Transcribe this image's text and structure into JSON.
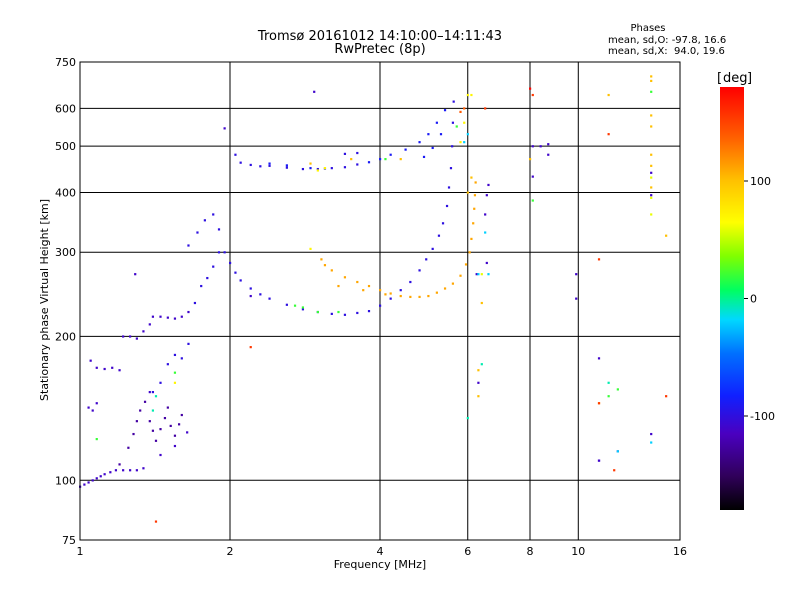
{
  "chart_data": {
    "type": "scatter",
    "title": "Tromsø 20161012 14:10:00–14:11:43",
    "subtitle": "RwPretec (8p)",
    "xlabel": "Frequency [MHz]",
    "ylabel": "Stationary phase Virtual Height [km]",
    "x_scale": "log",
    "y_scale": "log",
    "xlim": [
      1,
      16
    ],
    "ylim": [
      75,
      750
    ],
    "x_ticks": [
      1,
      2,
      4,
      6,
      8,
      10,
      16
    ],
    "x_tick_labels": [
      "1",
      "2",
      "4",
      "6",
      "8",
      "10",
      "16"
    ],
    "y_ticks": [
      75,
      100,
      200,
      300,
      400,
      500,
      600,
      750
    ],
    "y_tick_labels": [
      "75",
      "100",
      "200",
      "300",
      "400",
      "500",
      "600",
      "750"
    ],
    "grid": true,
    "stats": {
      "heading": "Phases",
      "line_o": "mean, sd,O: -97.8, 16.6",
      "line_x": "mean, sd,X:  94.0, 19.6"
    },
    "colorbar": {
      "label": "deg",
      "range": [
        -180,
        180
      ],
      "ticks": [
        100,
        0,
        -100
      ],
      "tick_labels": [
        "100",
        "0",
        "-100"
      ]
    },
    "series": [
      {
        "name": "",
        "phase": -110,
        "points": [
          [
            1.0,
            97
          ],
          [
            1.02,
            98
          ],
          [
            1.04,
            99
          ],
          [
            1.06,
            100
          ],
          [
            1.08,
            101
          ],
          [
            1.1,
            102
          ],
          [
            1.12,
            103
          ],
          [
            1.15,
            104
          ],
          [
            1.18,
            105
          ],
          [
            1.22,
            105
          ],
          [
            1.26,
            105
          ],
          [
            1.3,
            105
          ],
          [
            1.34,
            106
          ],
          [
            1.04,
            142
          ],
          [
            1.06,
            140
          ],
          [
            1.08,
            145
          ],
          [
            1.05,
            178
          ],
          [
            1.08,
            172
          ],
          [
            1.12,
            171
          ],
          [
            1.16,
            172
          ],
          [
            1.2,
            170
          ],
          [
            1.22,
            200
          ],
          [
            1.26,
            200
          ],
          [
            1.3,
            198
          ],
          [
            1.34,
            205
          ],
          [
            1.38,
            212
          ],
          [
            1.4,
            220
          ],
          [
            1.45,
            220
          ],
          [
            1.5,
            219
          ],
          [
            1.55,
            218
          ],
          [
            1.6,
            220
          ],
          [
            1.65,
            225
          ],
          [
            1.29,
            270
          ],
          [
            1.38,
            153
          ],
          [
            1.45,
            113
          ],
          [
            1.55,
            118
          ],
          [
            1.64,
            126
          ],
          [
            2.2,
            243
          ],
          [
            2.95,
            650
          ],
          [
            1.95,
            545
          ],
          [
            8.1,
            500
          ],
          [
            8.1,
            432
          ],
          [
            8.4,
            500
          ],
          [
            8.7,
            505
          ],
          [
            8.7,
            480
          ],
          [
            9.9,
            270
          ],
          [
            9.9,
            240
          ],
          [
            11.0,
            180
          ],
          [
            11.0,
            110
          ],
          [
            11.0,
            110
          ],
          [
            12.0,
            115
          ],
          [
            14.0,
            440
          ],
          [
            14.0,
            395
          ],
          [
            14.0,
            125
          ],
          [
            6.25,
            270
          ],
          [
            6.3,
            160
          ],
          [
            6.5,
            360
          ],
          [
            6.6,
            415
          ],
          [
            6.55,
            395
          ],
          [
            6.55,
            285
          ]
        ]
      },
      {
        "name": "",
        "phase": -125,
        "points": [
          [
            1.2,
            108
          ],
          [
            1.25,
            117
          ],
          [
            1.28,
            125
          ],
          [
            1.3,
            133
          ],
          [
            1.32,
            140
          ],
          [
            1.35,
            146
          ],
          [
            1.38,
            133
          ],
          [
            1.4,
            127
          ],
          [
            1.42,
            121
          ],
          [
            1.45,
            128
          ],
          [
            1.48,
            135
          ],
          [
            1.5,
            142
          ],
          [
            1.52,
            130
          ],
          [
            1.55,
            124
          ],
          [
            1.58,
            131
          ],
          [
            1.6,
            137
          ]
        ]
      },
      {
        "name": "",
        "phase": -100,
        "points": [
          [
            1.4,
            153
          ],
          [
            1.45,
            160
          ],
          [
            1.5,
            175
          ],
          [
            1.55,
            183
          ],
          [
            1.6,
            180
          ],
          [
            1.65,
            193
          ],
          [
            1.7,
            235
          ],
          [
            1.75,
            255
          ],
          [
            1.8,
            265
          ],
          [
            1.85,
            280
          ],
          [
            1.9,
            300
          ],
          [
            1.65,
            310
          ],
          [
            1.72,
            330
          ],
          [
            1.78,
            350
          ],
          [
            1.85,
            360
          ],
          [
            1.9,
            335
          ],
          [
            1.95,
            300
          ],
          [
            2.0,
            285
          ],
          [
            2.05,
            272
          ],
          [
            2.1,
            262
          ],
          [
            2.2,
            252
          ],
          [
            2.3,
            245
          ],
          [
            2.4,
            240
          ],
          [
            2.6,
            233
          ],
          [
            2.8,
            228
          ],
          [
            3.0,
            225
          ],
          [
            3.2,
            223
          ],
          [
            3.4,
            222
          ],
          [
            3.6,
            224
          ],
          [
            3.8,
            226
          ],
          [
            4.0,
            232
          ],
          [
            4.2,
            240
          ],
          [
            4.4,
            250
          ],
          [
            4.6,
            260
          ],
          [
            4.8,
            275
          ],
          [
            4.95,
            290
          ],
          [
            5.1,
            305
          ],
          [
            5.25,
            325
          ],
          [
            5.35,
            345
          ],
          [
            5.45,
            375
          ],
          [
            5.5,
            410
          ],
          [
            5.55,
            450
          ],
          [
            5.58,
            500
          ],
          [
            5.6,
            560
          ],
          [
            5.62,
            620
          ],
          [
            2.05,
            480
          ],
          [
            2.1,
            462
          ],
          [
            2.2,
            457
          ],
          [
            2.3,
            454
          ],
          [
            2.4,
            455
          ],
          [
            2.6,
            451
          ],
          [
            2.8,
            448
          ],
          [
            3.0,
            448
          ],
          [
            3.2,
            450
          ],
          [
            3.4,
            452
          ],
          [
            3.6,
            458
          ],
          [
            3.4,
            482
          ],
          [
            3.6,
            484
          ]
        ]
      },
      {
        "name": "",
        "phase": -90,
        "points": [
          [
            2.4,
            460
          ],
          [
            2.6,
            456
          ],
          [
            2.9,
            450
          ],
          [
            3.1,
            449
          ],
          [
            3.8,
            463
          ],
          [
            4.0,
            470
          ],
          [
            4.2,
            480
          ],
          [
            4.5,
            492
          ],
          [
            4.8,
            510
          ],
          [
            5.0,
            530
          ],
          [
            5.2,
            560
          ],
          [
            5.4,
            595
          ],
          [
            4.9,
            475
          ],
          [
            5.1,
            496
          ],
          [
            5.3,
            530
          ]
        ]
      },
      {
        "name": "",
        "phase": 110,
        "points": [
          [
            3.05,
            290
          ],
          [
            3.1,
            282
          ],
          [
            3.2,
            275
          ],
          [
            3.4,
            266
          ],
          [
            3.6,
            260
          ],
          [
            3.8,
            255
          ],
          [
            4.0,
            250
          ],
          [
            4.2,
            246
          ],
          [
            4.4,
            243
          ],
          [
            4.6,
            242
          ],
          [
            4.8,
            242
          ],
          [
            5.0,
            243
          ],
          [
            5.2,
            247
          ],
          [
            5.4,
            252
          ],
          [
            5.6,
            258
          ],
          [
            5.8,
            268
          ],
          [
            5.95,
            283
          ],
          [
            6.05,
            300
          ],
          [
            6.1,
            320
          ],
          [
            6.15,
            345
          ],
          [
            6.18,
            370
          ],
          [
            6.2,
            395
          ],
          [
            6.22,
            420
          ],
          [
            3.3,
            255
          ],
          [
            3.7,
            250
          ],
          [
            4.1,
            245
          ]
        ]
      },
      {
        "name": "",
        "phase": 100,
        "points": [
          [
            2.9,
            460
          ],
          [
            3.5,
            470
          ],
          [
            4.4,
            470
          ],
          [
            6.0,
            400
          ],
          [
            6.1,
            430
          ],
          [
            6.4,
            235
          ],
          [
            6.3,
            170
          ],
          [
            6.3,
            150
          ],
          [
            8.0,
            470
          ],
          [
            11.5,
            640
          ],
          [
            14.0,
            550
          ],
          [
            14.0,
            480
          ],
          [
            14.0,
            455
          ],
          [
            14.0,
            410
          ],
          [
            15.0,
            325
          ],
          [
            11.0,
            145
          ],
          [
            14.0,
            580
          ],
          [
            14.0,
            685
          ],
          [
            14.0,
            700
          ]
        ]
      },
      {
        "name": "",
        "phase": 70,
        "points": [
          [
            2.9,
            305
          ],
          [
            3.0,
            445
          ],
          [
            3.1,
            450
          ],
          [
            5.8,
            510
          ],
          [
            5.9,
            560
          ],
          [
            6.1,
            640
          ],
          [
            6.0,
            640
          ],
          [
            1.55,
            160
          ]
        ]
      },
      {
        "name": "",
        "phase": 20,
        "points": [
          [
            2.7,
            232
          ],
          [
            2.8,
            230
          ],
          [
            3.0,
            225
          ],
          [
            3.3,
            225
          ],
          [
            4.1,
            470
          ],
          [
            5.7,
            550
          ],
          [
            1.08,
            122
          ],
          [
            1.55,
            168
          ],
          [
            14.0,
            650
          ],
          [
            8.1,
            385
          ],
          [
            12.0,
            155
          ],
          [
            11.5,
            150
          ]
        ]
      },
      {
        "name": "",
        "phase": -20,
        "points": [
          [
            5.9,
            510
          ],
          [
            6.0,
            530
          ],
          [
            6.6,
            270
          ],
          [
            6.3,
            270
          ],
          [
            6.5,
            330
          ],
          [
            12.0,
            115
          ],
          [
            14.0,
            120
          ]
        ]
      },
      {
        "name": "",
        "phase": -5,
        "points": [
          [
            11.5,
            160
          ],
          [
            6.0,
            135
          ],
          [
            6.4,
            175
          ],
          [
            1.4,
            140
          ],
          [
            1.42,
            150
          ]
        ]
      },
      {
        "name": "",
        "phase": 155,
        "points": [
          [
            2.2,
            190
          ],
          [
            1.42,
            82
          ],
          [
            11.0,
            290
          ],
          [
            15.0,
            150
          ],
          [
            6.5,
            600
          ],
          [
            8.1,
            640
          ],
          [
            11.5,
            530
          ],
          [
            11.8,
            105
          ],
          [
            11.0,
            145
          ]
        ]
      },
      {
        "name": "",
        "phase": 178,
        "points": [
          [
            8.0,
            660
          ]
        ]
      },
      {
        "name": "",
        "phase": 140,
        "points": [
          [
            5.9,
            600
          ],
          [
            5.8,
            590
          ]
        ]
      },
      {
        "name": "",
        "phase": 60,
        "points": [
          [
            14.0,
            390
          ],
          [
            14.0,
            430
          ],
          [
            14.0,
            360
          ],
          [
            6.4,
            270
          ]
        ]
      }
    ]
  }
}
